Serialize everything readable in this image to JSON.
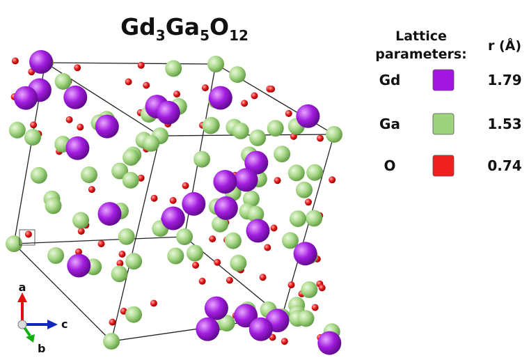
{
  "title": {
    "parts": [
      {
        "text": "Gd",
        "sub": "3"
      },
      {
        "text": "Ga",
        "sub": "5"
      },
      {
        "text": "O",
        "sub": "12"
      }
    ]
  },
  "legend": {
    "header": [
      "Lattice",
      "parameters:"
    ],
    "radius_header": "r (Å)",
    "rows": [
      {
        "element": "Gd",
        "color": "#a316e0",
        "radius": "1.79"
      },
      {
        "element": "Ga",
        "color": "#9fd27e",
        "radius": "1.53"
      },
      {
        "element": "O",
        "color": "#ee2020",
        "radius": "0.74"
      }
    ]
  },
  "axes": {
    "a": "a",
    "b": "b",
    "c": "c"
  }
}
